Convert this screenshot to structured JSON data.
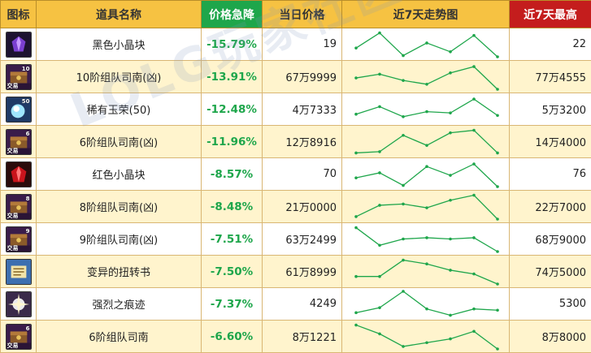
{
  "headers": {
    "icon": "图标",
    "name": "道具名称",
    "drop": "价格急降",
    "price": "当日价格",
    "trend": "近7天走势图",
    "high": "近7天最高"
  },
  "watermark": "LOLG玩家社区",
  "accent": {
    "header": "#f6c242",
    "drop": "#1ea64b",
    "high": "#c41d1d",
    "trend": "#1ea64b"
  },
  "rows": [
    {
      "icon": "purple-crystal-icon",
      "badge": "",
      "num": "",
      "name": "黑色小晶块",
      "drop": "-15.79%",
      "price": "19",
      "high": "22",
      "trend": [
        0.35,
        0.95,
        0.05,
        0.55,
        0.2,
        0.85,
        0.0
      ]
    },
    {
      "icon": "compass-chest-icon",
      "badge": "交易",
      "num": "10",
      "name": "10阶组队司南(凶)",
      "drop": "-13.91%",
      "price": "67万9999",
      "high": "77万4555",
      "trend": [
        0.45,
        0.6,
        0.35,
        0.2,
        0.65,
        0.9,
        0.0
      ]
    },
    {
      "icon": "jade-icon",
      "badge": "",
      "num": "50",
      "name": "稀有玉荣(50)",
      "drop": "-12.48%",
      "price": "4万7333",
      "high": "5万3200",
      "trend": [
        0.3,
        0.6,
        0.2,
        0.4,
        0.35,
        0.9,
        0.25
      ]
    },
    {
      "icon": "compass-chest-icon",
      "badge": "交易",
      "num": "6",
      "name": "6阶组队司南(凶)",
      "drop": "-11.96%",
      "price": "12万8916",
      "high": "14万4000",
      "trend": [
        0.05,
        0.1,
        0.75,
        0.35,
        0.85,
        0.95,
        0.05
      ]
    },
    {
      "icon": "red-crystal-icon",
      "badge": "",
      "num": "",
      "name": "红色小晶块",
      "drop": "-8.57%",
      "price": "70",
      "high": "76",
      "trend": [
        0.35,
        0.55,
        0.05,
        0.8,
        0.45,
        0.9,
        0.0
      ]
    },
    {
      "icon": "compass-chest-icon",
      "badge": "交易",
      "num": "8",
      "name": "8阶组队司南(凶)",
      "drop": "-8.48%",
      "price": "21万0000",
      "high": "22万7000",
      "trend": [
        0.1,
        0.55,
        0.6,
        0.45,
        0.75,
        0.95,
        0.0
      ]
    },
    {
      "icon": "compass-chest-icon",
      "badge": "交易",
      "num": "9",
      "name": "9阶组队司南(凶)",
      "drop": "-7.51%",
      "price": "63万2499",
      "high": "68万9000",
      "trend": [
        0.95,
        0.25,
        0.5,
        0.55,
        0.5,
        0.55,
        0.0
      ]
    },
    {
      "icon": "scroll-book-icon",
      "badge": "",
      "num": "",
      "name": "变异的扭转书",
      "drop": "-7.50%",
      "price": "61万8999",
      "high": "74万5000",
      "trend": [
        0.3,
        0.3,
        0.95,
        0.8,
        0.55,
        0.4,
        0.0
      ]
    },
    {
      "icon": "white-burst-icon",
      "badge": "",
      "num": "",
      "name": "强烈之痕迹",
      "drop": "-7.37%",
      "price": "4249",
      "high": "5300",
      "trend": [
        0.15,
        0.35,
        1.0,
        0.3,
        0.05,
        0.3,
        0.25
      ]
    },
    {
      "icon": "compass-chest-icon",
      "badge": "交易",
      "num": "6",
      "name": "6阶组队司南",
      "drop": "-6.60%",
      "price": "8万1221",
      "high": "8万8000",
      "trend": [
        0.95,
        0.6,
        0.1,
        0.25,
        0.4,
        0.7,
        0.0
      ]
    }
  ]
}
